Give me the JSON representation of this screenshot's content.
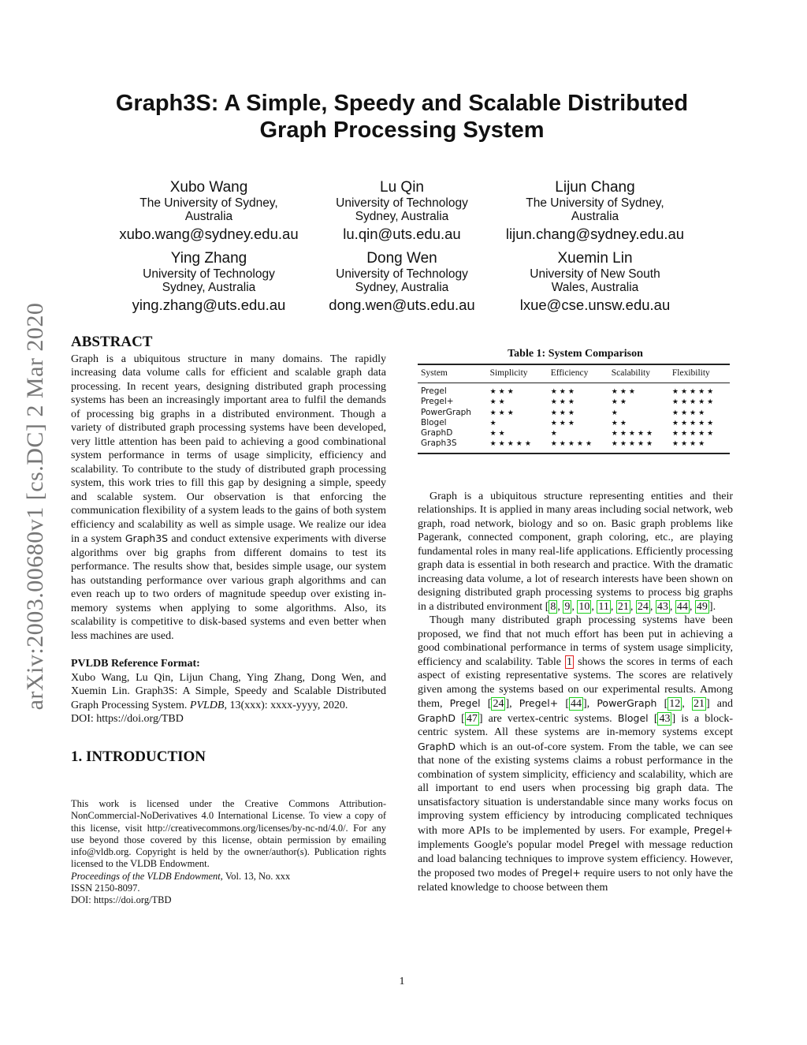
{
  "title_lines": [
    "Graph3S: A Simple, Speedy and Scalable Distributed",
    "Graph Processing System"
  ],
  "authors": [
    {
      "name": "Xubo Wang",
      "affiliation": [
        "The University of Sydney,",
        "Australia"
      ],
      "email": "xubo.wang@sydney.edu.au"
    },
    {
      "name": "Lu Qin",
      "affiliation": [
        "University of Technology",
        "Sydney, Australia"
      ],
      "email": "lu.qin@uts.edu.au"
    },
    {
      "name": "Lijun Chang",
      "affiliation": [
        "The University of Sydney,",
        "Australia"
      ],
      "email": "lijun.chang@sydney.edu.au"
    },
    {
      "name": "Ying Zhang",
      "affiliation": [
        "University of Technology",
        "Sydney, Australia"
      ],
      "email": "ying.zhang@uts.edu.au"
    },
    {
      "name": "Dong Wen",
      "affiliation": [
        "University of Technology",
        "Sydney, Australia"
      ],
      "email": "dong.wen@uts.edu.au"
    },
    {
      "name": "Xuemin Lin",
      "affiliation": [
        "University of New South",
        "Wales, Australia"
      ],
      "email": "lxue@cse.unsw.edu.au"
    }
  ],
  "arxiv_stamp": "arXiv:2003.00680v1  [cs.DC]  2 Mar 2020",
  "abstract": {
    "heading": "ABSTRACT",
    "segments": [
      {
        "t": "Graph is a ubiquitous structure in many domains. The rapidly increasing data volume calls for efficient and scalable graph data processing. In recent years, designing distributed graph processing systems has been an increasingly important area to fulfil the demands of processing big graphs in a distributed environment. Though a variety of distributed graph processing systems have been developed, very little attention has been paid to achieving a good combinational system performance in terms of usage simplicity, efficiency and scalability. To contribute to the study of distributed graph processing system, this work tries to fill this gap by designing a simple, speedy and scalable system. Our observation is that enforcing the communication flexibility of a system leads to the gains of both system efficiency and scalability as well as simple usage. We realize our idea in a system "
      },
      {
        "s": "Graph3S"
      },
      {
        "t": " and conduct extensive experiments with diverse algorithms over big graphs from different domains to test its performance. The results show that, besides simple usage, our system has outstanding performance over various graph algorithms and can even reach up to two orders of magnitude speedup over existing in-memory systems when applying to some algorithms. Also, its scalability is competitive to disk-based systems and even better when less machines are used."
      }
    ]
  },
  "reference_format": {
    "heading": "PVLDB Reference Format:",
    "text_before": "Xubo Wang, Lu Qin, Lijun Chang, Ying Zhang, Dong Wen, and Xuemin Lin. Graph3S: A Simple, Speedy and Scalable Distributed Graph Processing System. ",
    "journal": "PVLDB",
    "text_after": ", 13(xxx): xxxx-yyyy, 2020.",
    "doi": "DOI: https://doi.org/TBD"
  },
  "introduction_heading": "1.   INTRODUCTION",
  "license": {
    "text": "This work is licensed under the Creative Commons Attribution-NonCommercial-NoDerivatives 4.0 International License. To view a copy of this license, visit http://creativecommons.org/licenses/by-nc-nd/4.0/. For any use beyond those covered by this license, obtain permission by emailing info@vldb.org. Copyright is held by the owner/author(s). Publication rights licensed to the VLDB Endowment.",
    "proceedings_italic": "Proceedings of the VLDB Endowment,",
    "proceedings_rest": " Vol. 13, No. xxx",
    "issn": "ISSN 2150-8097.",
    "doi": "DOI: https://doi.org/TBD"
  },
  "table": {
    "caption": "Table 1: System Comparison",
    "headers": [
      "System",
      "Simplicity",
      "Efficiency",
      "Scalability",
      "Flexibility"
    ],
    "rows": [
      [
        "Pregel",
        "★★★",
        "★★★",
        "★★★",
        "★★★★★"
      ],
      [
        "Pregel+",
        "★★",
        "★★★",
        "★★",
        "★★★★★"
      ],
      [
        "PowerGraph",
        "★★★",
        "★★★",
        "★",
        "★★★★"
      ],
      [
        "Blogel",
        "★",
        "★★★",
        "★★",
        "★★★★★"
      ],
      [
        "GraphD",
        "★★",
        "★",
        "★★★★★",
        "★★★★★"
      ],
      [
        "Graph3S",
        "★★★★★",
        "★★★★★",
        "★★★★★",
        "★★★★"
      ]
    ]
  },
  "intro_paragraphs": [
    [
      {
        "t": "Graph is a ubiquitous structure representing entities and their relationships. It is applied in many areas including social network, web graph, road network, biology and so on. Basic graph problems like Pagerank, connected component, graph coloring, etc., are playing fundamental roles in many real-life applications. Efficiently processing graph data is essential in both research and practice. With the dramatic increasing data volume, a lot of research interests have been shown on designing distributed graph processing systems to process big graphs in a distributed environment ["
      },
      {
        "c": "8"
      },
      {
        "t": ", "
      },
      {
        "c": "9"
      },
      {
        "t": ", "
      },
      {
        "c": "10"
      },
      {
        "t": ", "
      },
      {
        "c": "11"
      },
      {
        "t": ", "
      },
      {
        "c": "21"
      },
      {
        "t": ", "
      },
      {
        "c": "24"
      },
      {
        "t": ", "
      },
      {
        "c": "43"
      },
      {
        "t": ", "
      },
      {
        "c": "44"
      },
      {
        "t": ", "
      },
      {
        "c": "49"
      },
      {
        "t": "]."
      }
    ],
    [
      {
        "t": "Though many distributed graph processing systems have been proposed, we find that not much effort has been put in achieving a good combinational performance in terms of system usage simplicity, efficiency and scalability. Table "
      },
      {
        "r": "1"
      },
      {
        "t": " shows the scores in terms of each aspect of existing representative systems. The scores are relatively given among the systems based on our experimental results. Among them, "
      },
      {
        "s": "Pregel"
      },
      {
        "t": " ["
      },
      {
        "c": "24"
      },
      {
        "t": "], "
      },
      {
        "s": "Pregel+"
      },
      {
        "t": " ["
      },
      {
        "c": "44"
      },
      {
        "t": "], "
      },
      {
        "s": "PowerGraph"
      },
      {
        "t": " ["
      },
      {
        "c": "12"
      },
      {
        "t": ", "
      },
      {
        "c": "21"
      },
      {
        "t": "] and "
      },
      {
        "s": "GraphD"
      },
      {
        "t": " ["
      },
      {
        "c": "47"
      },
      {
        "t": "] are vertex-centric systems. "
      },
      {
        "s": "Blogel"
      },
      {
        "t": " ["
      },
      {
        "c": "43"
      },
      {
        "t": "] is a block-centric system. All these systems are in-memory systems except "
      },
      {
        "s": "GraphD"
      },
      {
        "t": " which is an out-of-core system. From the table, we can see that none of the existing systems claims a robust performance in the combination of system simplicity, efficiency and scalability, which are all important to end users when processing big graph data. The unsatisfactory situation is understandable since many works focus on improving system efficiency by introducing complicated techniques with more APIs to be implemented by users. For example, "
      },
      {
        "s": "Pregel+"
      },
      {
        "t": " implements Google's popular model "
      },
      {
        "s": "Pregel"
      },
      {
        "t": " with message reduction and load balancing techniques to improve system efficiency. However, the proposed two modes of "
      },
      {
        "s": "Pregel+"
      },
      {
        "t": " require users to not only have the related knowledge to choose between them"
      }
    ]
  ],
  "page_number": "1",
  "colors": {
    "citation_box": "#1fd01f",
    "table_ref_box": "#e02020",
    "arxiv_stamp": "#777777"
  }
}
